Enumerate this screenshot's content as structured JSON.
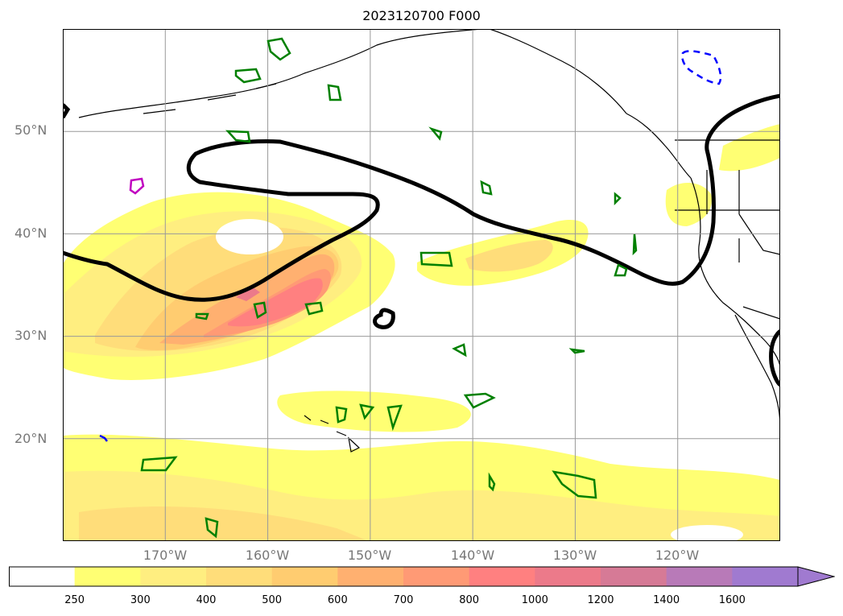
{
  "title": "2023120700 F000",
  "map": {
    "lat_labels": [
      "50°N",
      "40°N",
      "30°N",
      "20°N"
    ],
    "lon_labels": [
      "170°W",
      "160°W",
      "150°W",
      "140°W",
      "130°W",
      "120°W"
    ],
    "lat_values": [
      50,
      40,
      30,
      20
    ],
    "lon_values": [
      -170,
      -160,
      -150,
      -140,
      -130,
      -120
    ],
    "gridlines": true,
    "extent": {
      "lon_min": -180,
      "lon_max": -110,
      "lat_min": 10,
      "lat_max": 60
    }
  },
  "colorbar": {
    "levels": [
      "250",
      "300",
      "400",
      "500",
      "600",
      "700",
      "800",
      "1000",
      "1200",
      "1400",
      "1600"
    ],
    "colors": [
      "#ffffff",
      "#ffff73",
      "#ffee80",
      "#ffdd7a",
      "#ffcc70",
      "#ffb070",
      "#ff9a75",
      "#ff8080",
      "#ec7a8a",
      "#d67a96",
      "#b87ab8",
      "#a07ad0"
    ],
    "extend": "max"
  },
  "contours": {
    "main_color": "#000000",
    "positive_color": "#008000",
    "negative_color": "#0000ff",
    "magenta_color": "#c000c0"
  }
}
